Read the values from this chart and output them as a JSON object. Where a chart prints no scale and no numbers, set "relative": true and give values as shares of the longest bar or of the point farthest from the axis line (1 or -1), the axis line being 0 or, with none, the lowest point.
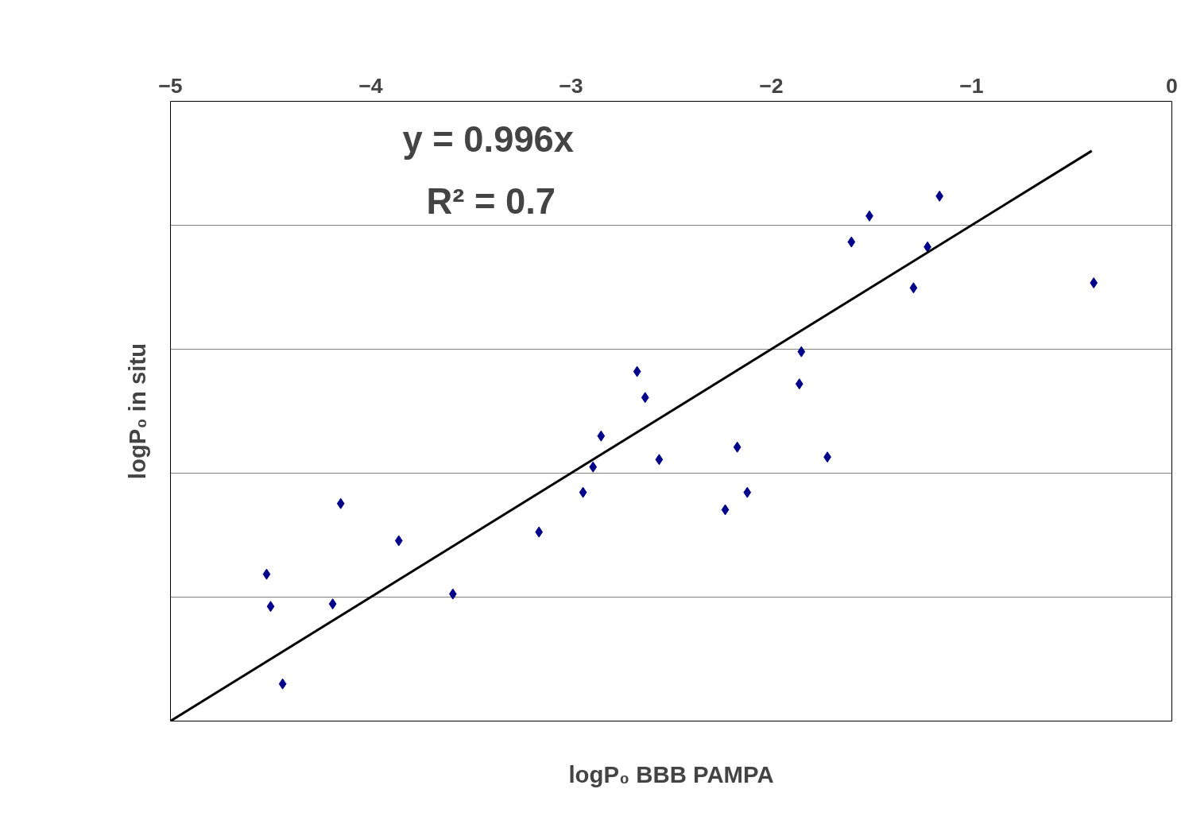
{
  "chart_data": {
    "type": "scatter",
    "xlabel": "logP₀ BBB PAMPA",
    "ylabel": "logP₀ in situ",
    "xlim": [
      -5,
      0
    ],
    "xticks": [
      -5,
      -4,
      -3,
      -2,
      -1,
      0
    ],
    "relative": true,
    "grid": "y",
    "marker": "diamond",
    "annotations": [
      "y = 0.996x",
      "R² = 0.7"
    ],
    "series": [
      {
        "color": "#00008b",
        "x": [
          -4.52,
          -4.5,
          -4.44,
          -4.19,
          -4.15,
          -3.86,
          -3.59,
          -3.16,
          -2.94,
          -2.89,
          -2.85,
          -2.67,
          -2.63,
          -2.56,
          -2.23,
          -2.17,
          -2.12,
          -1.86,
          -1.85,
          -1.72,
          -1.6,
          -1.51,
          -1.29,
          -1.22,
          -1.16,
          -0.39
        ],
        "values": [
          -0.763,
          -0.815,
          -0.94,
          -0.811,
          -0.649,
          -0.709,
          -0.795,
          -0.695,
          -0.631,
          -0.59,
          -0.54,
          -0.436,
          -0.478,
          -0.578,
          -0.659,
          -0.558,
          -0.631,
          -0.456,
          -0.404,
          -0.574,
          -0.227,
          -0.185,
          -0.301,
          -0.235,
          -0.153,
          -0.293
        ]
      },
      {
        "type": "line",
        "color": "#000000",
        "x": [
          -5,
          -0.4
        ],
        "values": [
          -1,
          -0.08
        ],
        "marker": "none"
      }
    ]
  }
}
